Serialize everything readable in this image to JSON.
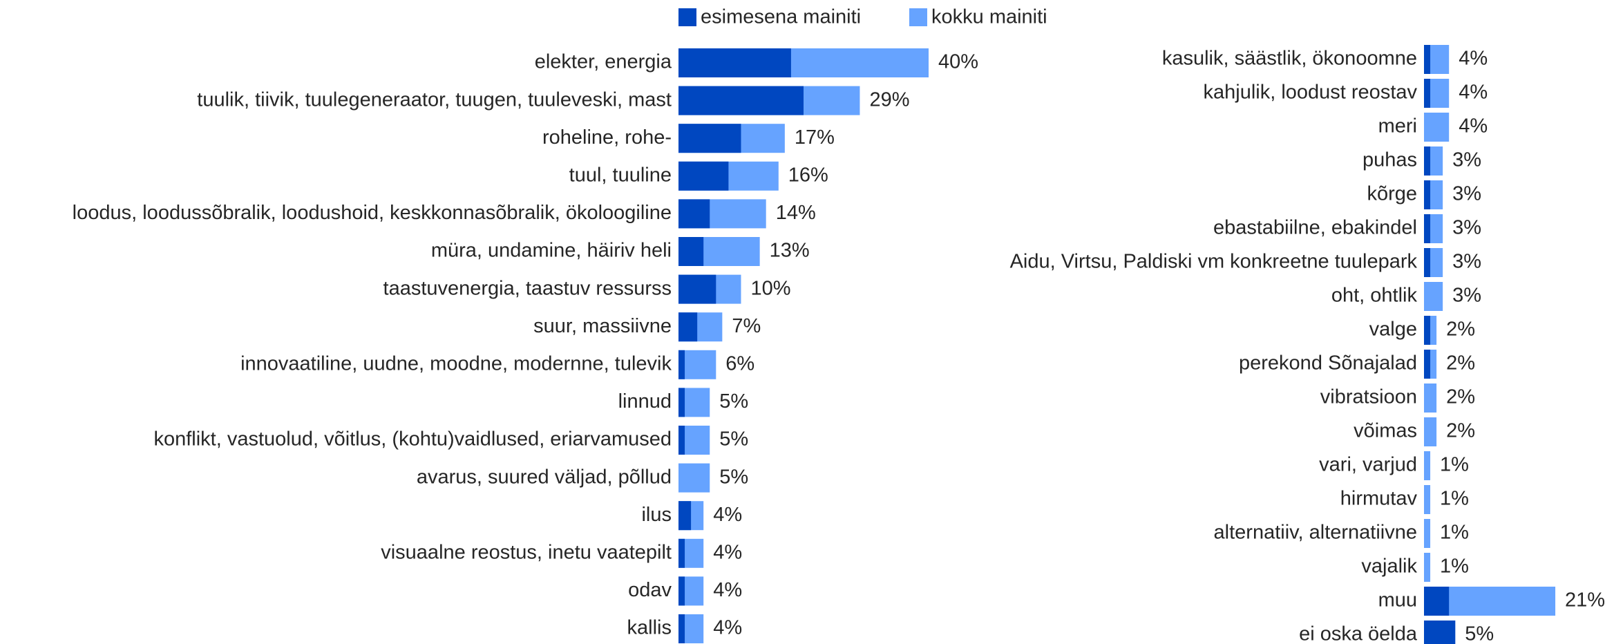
{
  "chart_data": {
    "type": "bar",
    "orientation": "horizontal",
    "categories": [
      "elekter, energia",
      "tuulik, tiivik, tuulegeneraator, tuugen, tuuleveski, mast",
      "roheline, rohe-",
      "tuul, tuuline",
      "loodus, loodussõbralik, loodushoid, keskkonnasõbralik, ökoloogiline",
      "müra, undamine, häiriv heli",
      "taastuvenergia, taastuv ressurss",
      "suur, massiivne",
      "innovaatiline, uudne, moodne, modernne, tulevik",
      "linnud",
      "konflikt, vastuolud, võitlus, (kohtu)vaidlused, eriarvamused",
      "avarus, suured väljad, põllud",
      "ilus",
      "visuaalne reostus, inetu vaatepilt",
      "odav",
      "kallis",
      "kasulik, säästlik, ökonoomne",
      "kahjulik, loodust reostav",
      "meri",
      "puhas",
      "kõrge",
      "ebastabiilne, ebakindel",
      "Aidu, Virtsu, Paldiski vm konkreetne tuulepark",
      "oht, ohtlik",
      "valge",
      "perekond Sõnajalad",
      "vibratsioon",
      "võimas",
      "vari, varjud",
      "hirmutav",
      "alternatiiv, alternatiivne",
      "vajalik",
      "muu",
      "ei oska öelda"
    ],
    "series": [
      {
        "name": "esimesena mainiti",
        "color": "#0047c0",
        "values": [
          18,
          20,
          10,
          8,
          5,
          4,
          6,
          3,
          1,
          1,
          1,
          0,
          2,
          1,
          1,
          1,
          1,
          1,
          0,
          1,
          1,
          1,
          1,
          0,
          1,
          1,
          0,
          0,
          0,
          0,
          0,
          0,
          4,
          5
        ]
      },
      {
        "name": "kokku mainiti",
        "color": "#66a3ff",
        "values": [
          40,
          29,
          17,
          16,
          14,
          13,
          10,
          7,
          6,
          5,
          5,
          5,
          4,
          4,
          4,
          4,
          4,
          4,
          4,
          3,
          3,
          3,
          3,
          3,
          2,
          2,
          2,
          2,
          1,
          1,
          1,
          1,
          21,
          5
        ],
        "value_labels": [
          "40%",
          "29%",
          "17%",
          "16%",
          "14%",
          "13%",
          "10%",
          "7%",
          "6%",
          "5%",
          "5%",
          "5%",
          "4%",
          "4%",
          "4%",
          "4%",
          "4%",
          "4%",
          "4%",
          "3%",
          "3%",
          "3%",
          "3%",
          "3%",
          "2%",
          "2%",
          "2%",
          "2%",
          "1%",
          "1%",
          "1%",
          "1%",
          "21%",
          "5%"
        ]
      }
    ],
    "legend": "top"
  }
}
